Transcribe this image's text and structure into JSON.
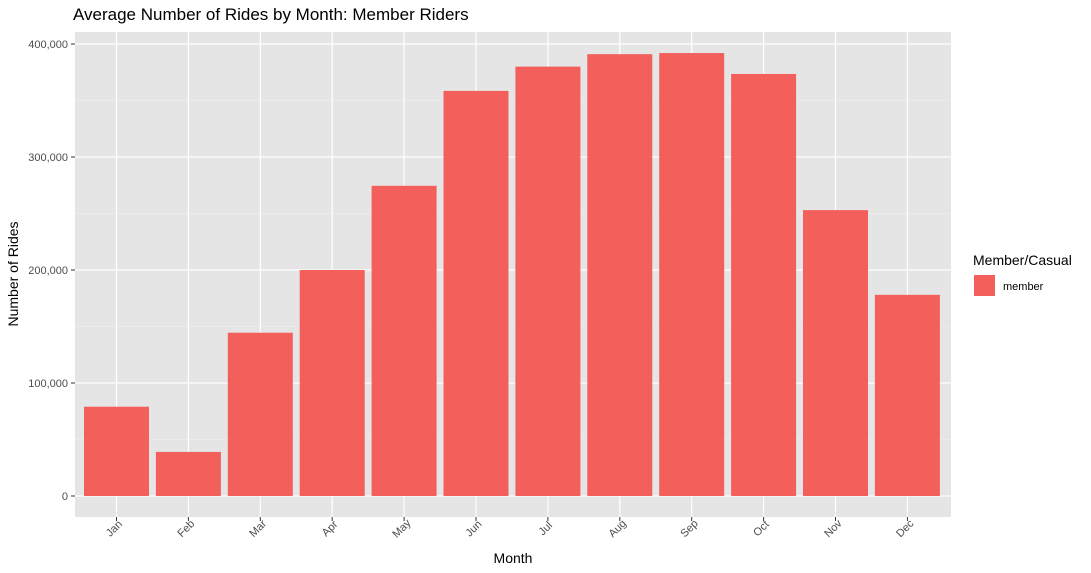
{
  "chart_data": {
    "type": "bar",
    "title": "Average Number of Rides by Month: Member Riders",
    "xlabel": "Month",
    "ylabel": "Number of Rides",
    "categories": [
      "Jan",
      "Feb",
      "Mar",
      "Apr",
      "May",
      "Jun",
      "Jul",
      "Aug",
      "Sep",
      "Oct",
      "Nov",
      "Dec"
    ],
    "series": [
      {
        "name": "member",
        "color": "#F35F5B",
        "values": [
          79000,
          39000,
          144500,
          200000,
          274500,
          358500,
          380000,
          391000,
          392000,
          373500,
          253000,
          178000
        ]
      }
    ],
    "ylim": [
      0,
      410000
    ],
    "y_ticks": [
      0,
      100000,
      200000,
      300000,
      400000
    ],
    "y_tick_labels": [
      "0",
      "100,000",
      "200,000",
      "300,000",
      "400,000"
    ],
    "grid": true,
    "legend": {
      "title": "Member/Casual",
      "position": "right"
    },
    "colors": {
      "panel_background": "#E5E5E5",
      "grid_major": "#FFFFFF",
      "grid_minor": "#F2F2F2",
      "axis_text": "#4D4D4D",
      "title_text": "#000000"
    }
  }
}
